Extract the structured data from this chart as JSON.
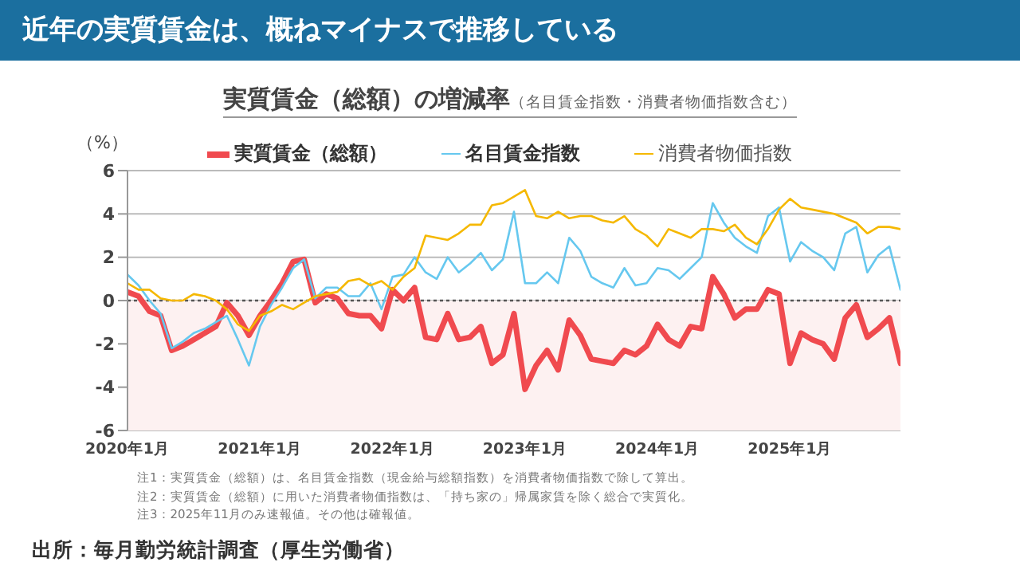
{
  "chart_data": {
    "type": "line",
    "title": "近年の実質賃金は、概ねマイナスで推移している",
    "subtitle": "実質賃金（総額）の増減率",
    "ylabel": "（%）",
    "annotations": [
      "（名目賃金指数・消費者物価指数含む）",
      "注1：実質賃金（総額）は、名目賃金指数（現金給与総額指数）を消費者物価指数で除して算出。",
      "注2：実質賃金（総額）に用いた消費者物価指数は、「持ち家の」帰属家賃を除く総合で実質化。",
      "注3：2025年11月のみ速報値。その他は確報値。",
      "出所：毎月勤労統計調査（厚生労働省）"
    ],
    "x": [
      "2020-01",
      "2020-02",
      "2020-03",
      "2020-04",
      "2020-05",
      "2020-06",
      "2020-07",
      "2020-08",
      "2020-09",
      "2020-10",
      "2020-11",
      "2020-12",
      "2021-01",
      "2021-02",
      "2021-03",
      "2021-04",
      "2021-05",
      "2021-06",
      "2021-07",
      "2021-08",
      "2021-09",
      "2021-10",
      "2021-11",
      "2021-12",
      "2022-01",
      "2022-02",
      "2022-03",
      "2022-04",
      "2022-05",
      "2022-06",
      "2022-07",
      "2022-08",
      "2022-09",
      "2022-10",
      "2022-11",
      "2022-12",
      "2023-01",
      "2023-02",
      "2023-03",
      "2023-04",
      "2023-05",
      "2023-06",
      "2023-07",
      "2023-08",
      "2023-09",
      "2023-10",
      "2023-11",
      "2023-12",
      "2024-01",
      "2024-02",
      "2024-03",
      "2024-04",
      "2024-05",
      "2024-06",
      "2024-07",
      "2024-08",
      "2024-09",
      "2024-10",
      "2024-11",
      "2024-12",
      "2025-01",
      "2025-02",
      "2025-03",
      "2025-04",
      "2025-05",
      "2025-06",
      "2025-07",
      "2025-08",
      "2025-09",
      "2025-10",
      "2025-11"
    ],
    "series": [
      {
        "name": "実質賃金（総額）",
        "color": "#f04a4f",
        "values": [
          0.4,
          0.2,
          -0.5,
          -0.7,
          -2.3,
          -2.1,
          -1.8,
          -1.5,
          -1.2,
          -0.1,
          -0.7,
          -1.6,
          -0.7,
          0.0,
          0.8,
          1.8,
          1.9,
          -0.1,
          0.3,
          0.1,
          -0.6,
          -0.7,
          -0.7,
          -1.3,
          0.5,
          0.0,
          0.6,
          -1.7,
          -1.8,
          -0.6,
          -1.8,
          -1.7,
          -1.2,
          -2.9,
          -2.5,
          -0.6,
          -4.1,
          -3.0,
          -2.3,
          -3.2,
          -0.9,
          -1.6,
          -2.7,
          -2.8,
          -2.9,
          -2.3,
          -2.5,
          -2.1,
          -1.1,
          -1.8,
          -2.1,
          -1.2,
          -1.3,
          1.1,
          0.3,
          -0.8,
          -0.4,
          -0.4,
          0.5,
          0.3,
          -2.9,
          -1.5,
          -1.8,
          -2.0,
          -2.7,
          -0.8,
          -0.2,
          -1.7,
          -1.3,
          -0.8,
          -2.9
        ]
      },
      {
        "name": "名目賃金指数",
        "color": "#66c8ef",
        "values": [
          1.2,
          0.7,
          0.0,
          -0.6,
          -2.2,
          -1.9,
          -1.5,
          -1.3,
          -1.0,
          -0.7,
          -1.8,
          -3.0,
          -1.2,
          -0.2,
          0.6,
          1.5,
          1.9,
          0.1,
          0.6,
          0.6,
          0.2,
          0.2,
          0.8,
          -0.4,
          1.1,
          1.2,
          2.0,
          1.3,
          1.0,
          2.0,
          1.3,
          1.7,
          2.2,
          1.4,
          1.9,
          4.1,
          0.8,
          0.8,
          1.3,
          0.8,
          2.9,
          2.3,
          1.1,
          0.8,
          0.6,
          1.5,
          0.7,
          0.8,
          1.5,
          1.4,
          1.0,
          1.5,
          2.0,
          4.5,
          3.6,
          2.9,
          2.5,
          2.2,
          3.9,
          4.3,
          1.8,
          2.7,
          2.3,
          2.0,
          1.4,
          3.1,
          3.4,
          1.3,
          2.1,
          2.5,
          0.5
        ]
      },
      {
        "name": "消費者物価指数",
        "color": "#f5b800",
        "values": [
          0.8,
          0.5,
          0.5,
          0.1,
          0.0,
          0.0,
          0.3,
          0.2,
          0.0,
          -0.4,
          -1.1,
          -1.4,
          -0.7,
          -0.5,
          -0.2,
          -0.4,
          -0.1,
          0.2,
          0.3,
          0.4,
          0.9,
          1.0,
          0.7,
          0.9,
          0.5,
          1.1,
          1.5,
          3.0,
          2.9,
          2.8,
          3.1,
          3.5,
          3.5,
          4.4,
          4.5,
          4.8,
          5.1,
          3.9,
          3.8,
          4.1,
          3.8,
          3.9,
          3.9,
          3.7,
          3.6,
          3.9,
          3.3,
          3.0,
          2.5,
          3.3,
          3.1,
          2.9,
          3.3,
          3.3,
          3.2,
          3.5,
          2.9,
          2.6,
          3.3,
          4.2,
          4.7,
          4.3,
          4.2,
          4.1,
          4.0,
          3.8,
          3.6,
          3.1,
          3.4,
          3.4,
          3.3
        ]
      }
    ],
    "xlim": [
      "2020-01",
      "2025-11"
    ],
    "xticks": [
      {
        "value": "2020-01",
        "label": "2020年1月"
      },
      {
        "value": "2021-01",
        "label": "2021年1月"
      },
      {
        "value": "2022-01",
        "label": "2022年1月"
      },
      {
        "value": "2023-01",
        "label": "2023年1月"
      },
      {
        "value": "2024-01",
        "label": "2024年1月"
      },
      {
        "value": "2025-01",
        "label": "2025年1月"
      }
    ],
    "ylim": [
      -6,
      6
    ],
    "yticks": [
      -6,
      -4,
      -2,
      0,
      2,
      4,
      6
    ],
    "ref_lines": [
      {
        "axis": "y",
        "value": 0,
        "color": "#555555",
        "line_style": "dotted"
      }
    ],
    "bands": [
      {
        "axis": "y",
        "from": -6,
        "to": 0,
        "color": "#fdf1f1"
      }
    ],
    "grid": "y",
    "legend": "top",
    "marker": "none",
    "line_style": "solid"
  }
}
